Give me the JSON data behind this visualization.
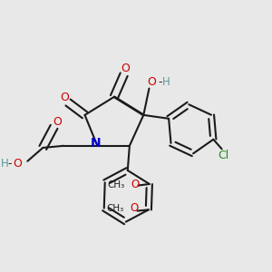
{
  "bg_color": "#e8e8e8",
  "bond_color": "#1a1a1a",
  "atom_colors": {
    "O": "#cc0000",
    "N": "#0000cc",
    "Cl": "#228b22",
    "H": "#5a9898",
    "C": "#1a1a1a"
  },
  "figsize": [
    3.0,
    3.0
  ],
  "dpi": 100,
  "lw": 1.5,
  "sep": 0.012
}
